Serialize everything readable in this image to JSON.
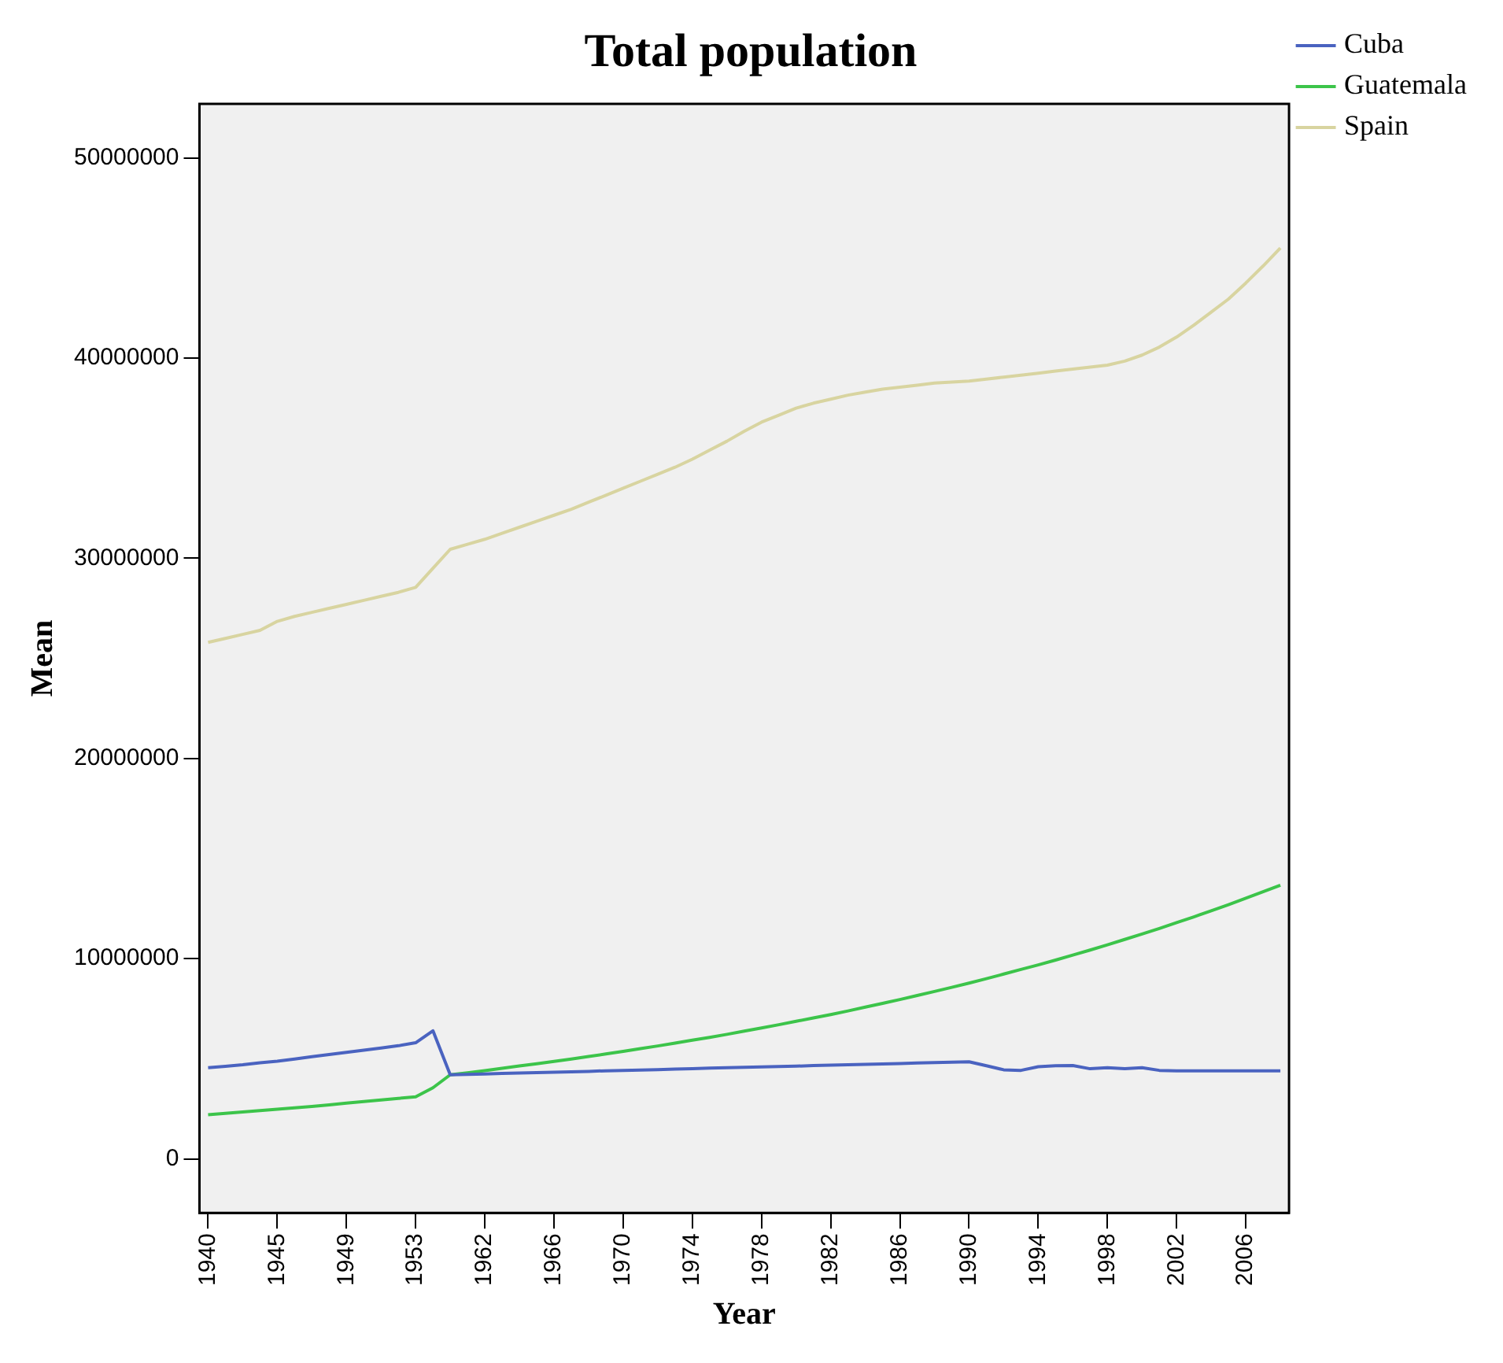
{
  "chart_data": {
    "type": "line",
    "title": "Total population",
    "xlabel": "Year",
    "ylabel": "Mean",
    "categories": [
      "1940",
      null,
      null,
      null,
      "1945",
      null,
      null,
      null,
      "1949",
      null,
      null,
      null,
      "1953",
      null,
      null,
      null,
      "1962",
      null,
      null,
      null,
      "1966",
      null,
      null,
      null,
      "1970",
      null,
      null,
      null,
      "1974",
      null,
      null,
      null,
      "1978",
      null,
      null,
      null,
      "1982",
      null,
      null,
      null,
      "1986",
      null,
      null,
      null,
      "1990",
      null,
      null,
      null,
      "1994",
      null,
      null,
      null,
      "1998",
      null,
      null,
      null,
      "2002",
      null,
      null,
      null,
      "2006",
      null,
      null
    ],
    "series": [
      {
        "name": "Cuba",
        "color": "#4a63c0",
        "values": [
          4550000,
          4620000,
          4700000,
          4800000,
          4880000,
          4990000,
          5100000,
          5210000,
          5320000,
          5430000,
          5540000,
          5650000,
          5800000,
          6400000,
          4200000,
          4220000,
          4240000,
          4270000,
          4290000,
          4310000,
          4330000,
          4350000,
          4370000,
          4400000,
          4420000,
          4440000,
          4460000,
          4480000,
          4500000,
          4530000,
          4550000,
          4570000,
          4590000,
          4610000,
          4630000,
          4660000,
          4680000,
          4700000,
          4720000,
          4740000,
          4760000,
          4790000,
          4810000,
          4830000,
          4850000,
          4650000,
          4450000,
          4420000,
          4600000,
          4650000,
          4660000,
          4500000,
          4550000,
          4500000,
          4550000,
          4420000,
          4400000,
          4400000,
          4400000,
          4400000,
          4400000,
          4400000,
          4400000
        ]
      },
      {
        "name": "Guatemala",
        "color": "#3cc44a",
        "values": [
          2200000,
          2270000,
          2340000,
          2410000,
          2480000,
          2550000,
          2620000,
          2700000,
          2780000,
          2860000,
          2940000,
          3020000,
          3100000,
          3550000,
          4200000,
          4300000,
          4410000,
          4520000,
          4640000,
          4750000,
          4870000,
          4990000,
          5110000,
          5240000,
          5370000,
          5510000,
          5640000,
          5780000,
          5930000,
          6070000,
          6220000,
          6380000,
          6540000,
          6700000,
          6870000,
          7040000,
          7210000,
          7390000,
          7580000,
          7770000,
          7960000,
          8160000,
          8360000,
          8570000,
          8780000,
          9000000,
          9230000,
          9460000,
          9690000,
          9930000,
          10180000,
          10430000,
          10690000,
          10960000,
          11230000,
          11510000,
          11800000,
          12090000,
          12390000,
          12700000,
          13020000,
          13340000,
          13670000
        ]
      },
      {
        "name": "Spain",
        "color": "#d8d4a0",
        "values": [
          25800000,
          26000000,
          26200000,
          26400000,
          26850000,
          27100000,
          27300000,
          27500000,
          27700000,
          27900000,
          28100000,
          28300000,
          28550000,
          29500000,
          30450000,
          30700000,
          30950000,
          31250000,
          31550000,
          31850000,
          32150000,
          32450000,
          32800000,
          33150000,
          33500000,
          33850000,
          34200000,
          34550000,
          34950000,
          35400000,
          35850000,
          36350000,
          36800000,
          37150000,
          37500000,
          37750000,
          37950000,
          38150000,
          38300000,
          38450000,
          38550000,
          38650000,
          38750000,
          38800000,
          38850000,
          38950000,
          39050000,
          39150000,
          39250000,
          39350000,
          39450000,
          39550000,
          39650000,
          39850000,
          40150000,
          40550000,
          41050000,
          41650000,
          42300000,
          42950000,
          43750000,
          44600000,
          45500000
        ]
      }
    ],
    "ylim": [
      -2700000,
      52700000
    ],
    "yticks": [
      0,
      10000000,
      20000000,
      30000000,
      40000000,
      50000000
    ],
    "grid": false,
    "legend": "top right",
    "marker": "none",
    "line_style": "solid"
  }
}
